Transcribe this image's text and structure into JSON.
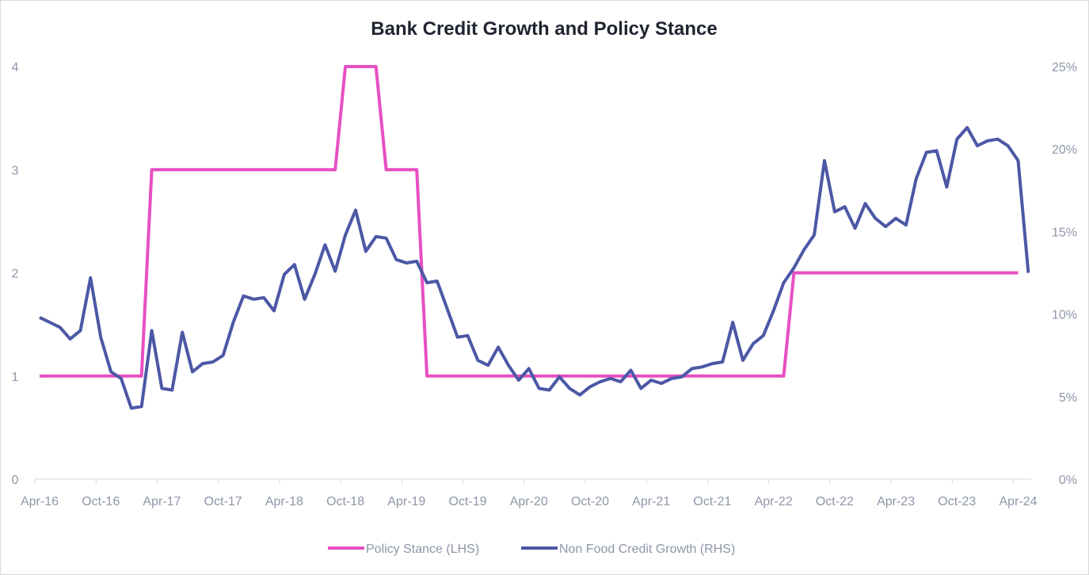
{
  "chart_data": {
    "type": "line",
    "title": "Bank Credit Growth and Policy Stance",
    "x_tick_labels": [
      "Apr-16",
      "Oct-16",
      "Apr-17",
      "Oct-17",
      "Apr-18",
      "Oct-18",
      "Apr-19",
      "Oct-19",
      "Apr-20",
      "Oct-20",
      "Apr-21",
      "Oct-21",
      "Apr-22",
      "Oct-22",
      "Apr-23",
      "Oct-23",
      "Apr-24"
    ],
    "y_left": {
      "min": 0,
      "max": 4,
      "ticks": [
        0,
        1,
        2,
        3,
        4
      ],
      "tick_labels": [
        "0",
        "1",
        "2",
        "3",
        "4"
      ]
    },
    "y_right": {
      "min": 0,
      "max": 25,
      "ticks": [
        0,
        5,
        10,
        15,
        20,
        25
      ],
      "tick_labels": [
        "0%",
        "5%",
        "10%",
        "15%",
        "20%",
        "25%"
      ]
    },
    "grid": false,
    "legend_position": "bottom",
    "series": [
      {
        "name": "Policy Stance (LHS)",
        "axis": "left",
        "color": "#e84fc1",
        "points": [
          [
            "2016-04",
            1
          ],
          [
            "2017-02",
            1
          ],
          [
            "2017-03",
            3
          ],
          [
            "2018-09",
            3
          ],
          [
            "2018-10",
            4
          ],
          [
            "2019-01",
            4
          ],
          [
            "2019-02",
            3
          ],
          [
            "2019-05",
            3
          ],
          [
            "2019-06",
            1
          ],
          [
            "2022-05",
            1
          ],
          [
            "2022-06",
            2
          ],
          [
            "2024-04",
            2
          ]
        ]
      },
      {
        "name": "Non Food Credit Growth (RHS)",
        "axis": "right",
        "color": "#4c57a5",
        "points": [
          [
            "2016-04",
            9.8
          ],
          [
            "2016-05",
            9.5
          ],
          [
            "2016-06",
            9.2
          ],
          [
            "2016-07",
            8.5
          ],
          [
            "2016-08",
            9.0
          ],
          [
            "2016-09",
            12.2
          ],
          [
            "2016-10",
            8.6
          ],
          [
            "2016-11",
            6.5
          ],
          [
            "2016-12",
            6.1
          ],
          [
            "2017-01",
            4.3
          ],
          [
            "2017-02",
            4.4
          ],
          [
            "2017-03",
            9.0
          ],
          [
            "2017-04",
            5.5
          ],
          [
            "2017-05",
            5.4
          ],
          [
            "2017-06",
            8.9
          ],
          [
            "2017-07",
            6.5
          ],
          [
            "2017-08",
            7.0
          ],
          [
            "2017-09",
            7.1
          ],
          [
            "2017-10",
            7.5
          ],
          [
            "2017-11",
            9.5
          ],
          [
            "2017-12",
            11.1
          ],
          [
            "2018-01",
            10.9
          ],
          [
            "2018-02",
            11.0
          ],
          [
            "2018-03",
            10.2
          ],
          [
            "2018-04",
            12.4
          ],
          [
            "2018-05",
            13.0
          ],
          [
            "2018-06",
            10.9
          ],
          [
            "2018-07",
            12.4
          ],
          [
            "2018-08",
            14.2
          ],
          [
            "2018-09",
            12.6
          ],
          [
            "2018-10",
            14.8
          ],
          [
            "2018-11",
            16.3
          ],
          [
            "2018-12",
            13.8
          ],
          [
            "2019-01",
            14.7
          ],
          [
            "2019-02",
            14.6
          ],
          [
            "2019-03",
            13.3
          ],
          [
            "2019-04",
            13.1
          ],
          [
            "2019-05",
            13.2
          ],
          [
            "2019-06",
            11.9
          ],
          [
            "2019-07",
            12.0
          ],
          [
            "2019-08",
            10.3
          ],
          [
            "2019-09",
            8.6
          ],
          [
            "2019-10",
            8.7
          ],
          [
            "2019-11",
            7.2
          ],
          [
            "2019-12",
            6.9
          ],
          [
            "2020-01",
            8.0
          ],
          [
            "2020-02",
            6.9
          ],
          [
            "2020-03",
            6.0
          ],
          [
            "2020-04",
            6.7
          ],
          [
            "2020-05",
            5.5
          ],
          [
            "2020-06",
            5.4
          ],
          [
            "2020-07",
            6.2
          ],
          [
            "2020-08",
            5.5
          ],
          [
            "2020-09",
            5.1
          ],
          [
            "2020-10",
            5.6
          ],
          [
            "2020-11",
            5.9
          ],
          [
            "2020-12",
            6.1
          ],
          [
            "2021-01",
            5.9
          ],
          [
            "2021-02",
            6.6
          ],
          [
            "2021-03",
            5.5
          ],
          [
            "2021-04",
            6.0
          ],
          [
            "2021-05",
            5.8
          ],
          [
            "2021-06",
            6.1
          ],
          [
            "2021-07",
            6.2
          ],
          [
            "2021-08",
            6.7
          ],
          [
            "2021-09",
            6.8
          ],
          [
            "2021-10",
            7.0
          ],
          [
            "2021-11",
            7.1
          ],
          [
            "2021-12",
            9.5
          ],
          [
            "2022-01",
            7.2
          ],
          [
            "2022-02",
            8.2
          ],
          [
            "2022-03",
            8.7
          ],
          [
            "2022-04",
            10.2
          ],
          [
            "2022-05",
            11.9
          ],
          [
            "2022-06",
            12.8
          ],
          [
            "2022-07",
            13.9
          ],
          [
            "2022-08",
            14.8
          ],
          [
            "2022-09",
            19.3
          ],
          [
            "2022-10",
            16.2
          ],
          [
            "2022-11",
            16.5
          ],
          [
            "2022-12",
            15.2
          ],
          [
            "2023-01",
            16.7
          ],
          [
            "2023-02",
            15.8
          ],
          [
            "2023-03",
            15.3
          ],
          [
            "2023-04",
            15.8
          ],
          [
            "2023-05",
            15.4
          ],
          [
            "2023-06",
            18.2
          ],
          [
            "2023-07",
            19.8
          ],
          [
            "2023-08",
            19.9
          ],
          [
            "2023-09",
            17.7
          ],
          [
            "2023-10",
            20.6
          ],
          [
            "2023-11",
            21.3
          ],
          [
            "2023-12",
            20.2
          ],
          [
            "2024-01",
            20.5
          ],
          [
            "2024-02",
            20.6
          ],
          [
            "2024-03",
            20.2
          ],
          [
            "2024-04",
            19.3
          ],
          [
            "2024-05",
            12.5
          ]
        ]
      }
    ]
  }
}
